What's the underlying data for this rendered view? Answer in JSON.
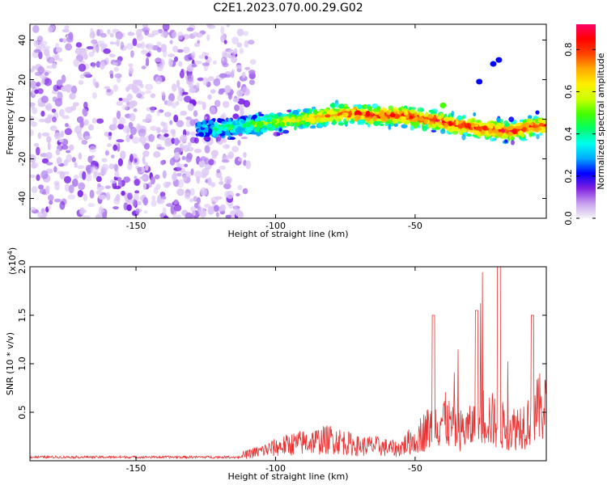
{
  "title": "C2E1.2023.070.00.29.G02",
  "chart_data": [
    {
      "type": "heatmap",
      "xlabel": "Height of straight line (km)",
      "ylabel": "Frequency (Hz)",
      "xlim": [
        -188,
        -3
      ],
      "ylim": [
        -50,
        48
      ],
      "xticks": [
        -150,
        -100,
        -50
      ],
      "yticks": [
        -40,
        -20,
        0,
        20,
        40
      ],
      "colorbar": {
        "label": "Normalized spectral amplitude",
        "range": [
          0,
          0.92
        ],
        "ticks": [
          "0.0",
          "0.2",
          "0.4",
          "0.6",
          "0.8"
        ],
        "colors": [
          "#f5f5f5",
          "#c8a0f0",
          "#8020e0",
          "#0000ff",
          "#00aaff",
          "#00ffee",
          "#00ff66",
          "#44ff00",
          "#ccff00",
          "#ffee00",
          "#ffaa00",
          "#ff4400",
          "#ff0000",
          "#ff0066"
        ]
      },
      "ridge": {
        "x": [
          -125,
          -115,
          -105,
          -95,
          -85,
          -75,
          -65,
          -55,
          -45,
          -35,
          -25,
          -15,
          -5
        ],
        "y": [
          -5,
          -4,
          -2,
          -1,
          1,
          3,
          2,
          2,
          0,
          -3,
          -5,
          -6,
          -3
        ]
      }
    },
    {
      "type": "line",
      "xlabel": "Height of straight line (km)",
      "ylabel": "SNR (10 * v/v)",
      "ylabel_exponent": "(x10",
      "exponent_power": "4",
      "xlim": [
        -188,
        -3
      ],
      "ylim": [
        0,
        20000
      ],
      "xticks": [
        -150,
        -100,
        -50
      ],
      "yticks": [
        "0.5",
        "1.0",
        "1.5",
        "2.0"
      ],
      "ytick_values": [
        5000,
        10000,
        15000,
        20000
      ],
      "color": "#e83030",
      "envelope": {
        "x": [
          -188,
          -150,
          -120,
          -112,
          -105,
          -100,
          -95,
          -90,
          -85,
          -80,
          -75,
          -70,
          -65,
          -60,
          -56,
          -50,
          -45,
          -40,
          -35,
          -30,
          -25,
          -20,
          -15,
          -10,
          -5,
          -3
        ],
        "y": [
          400,
          450,
          500,
          800,
          1500,
          2000,
          2500,
          2800,
          3000,
          3300,
          2800,
          2200,
          2300,
          2000,
          1800,
          3500,
          5000,
          6500,
          4500,
          5000,
          7000,
          5500,
          5000,
          6000,
          8000,
          9000
        ]
      }
    }
  ]
}
